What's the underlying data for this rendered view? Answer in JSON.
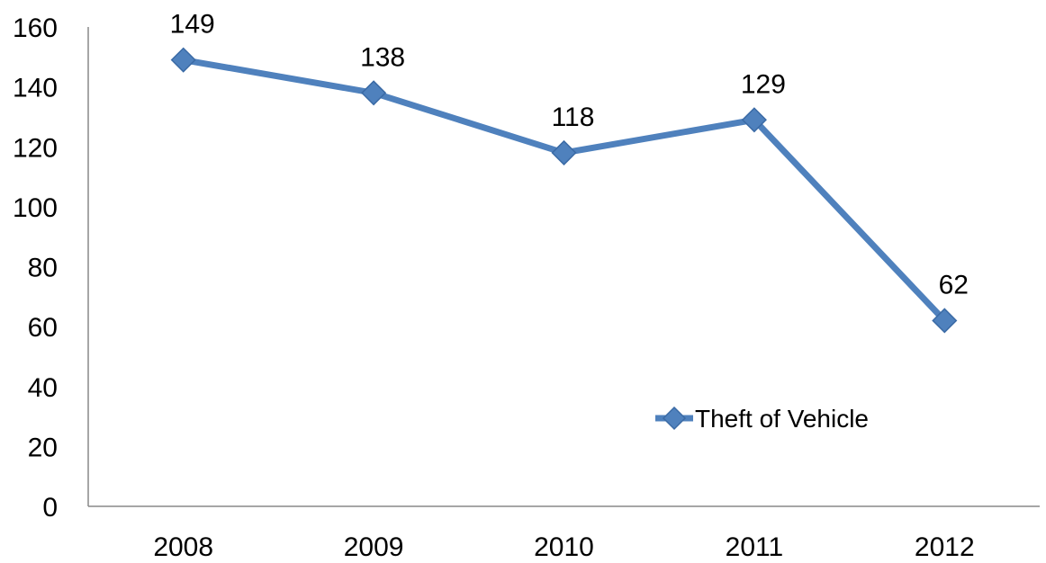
{
  "chart_data": {
    "type": "line",
    "title": "",
    "xlabel": "",
    "ylabel": "",
    "categories": [
      "2008",
      "2009",
      "2010",
      "2011",
      "2012"
    ],
    "series": [
      {
        "name": "Theft of Vehicle",
        "values": [
          149,
          138,
          118,
          129,
          62
        ],
        "color": "#4f81bd",
        "marker": "diamond"
      }
    ],
    "y_ticks": [
      "0",
      "20",
      "40",
      "60",
      "80",
      "100",
      "120",
      "140",
      "160"
    ],
    "ylim": [
      0,
      160
    ],
    "data_labels": [
      "149",
      "138",
      "118",
      "129",
      "62"
    ],
    "grid": false,
    "legend_position": "right"
  }
}
